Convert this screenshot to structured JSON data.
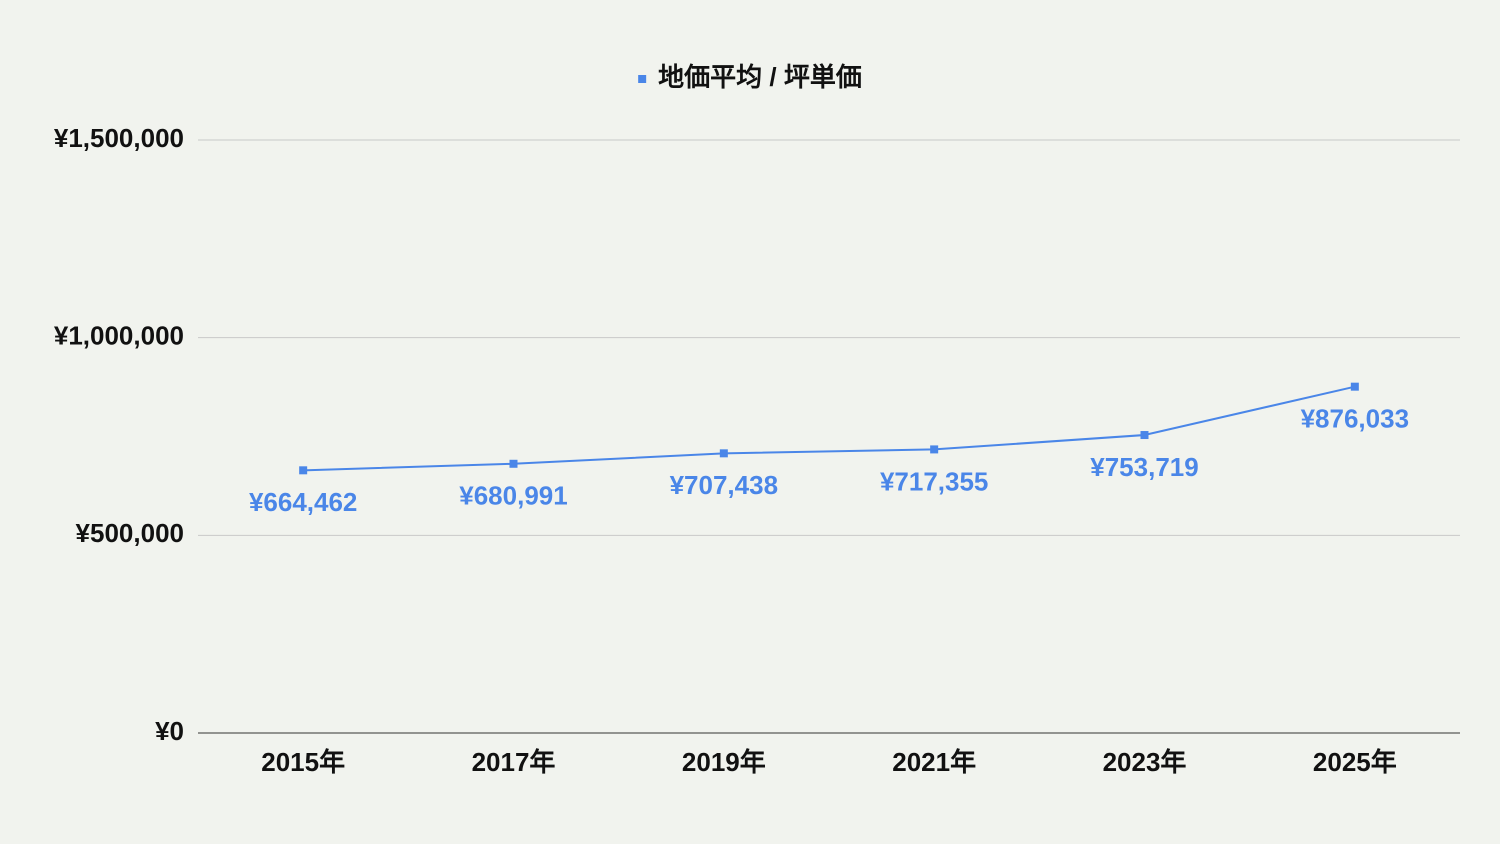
{
  "chart_data": {
    "type": "line",
    "categories": [
      "2015年",
      "2017年",
      "2019年",
      "2021年",
      "2023年",
      "2025年"
    ],
    "series": [
      {
        "name": "地価平均 / 坪単価",
        "color": "#4a86e8",
        "values": [
          664462,
          680991,
          707438,
          717355,
          753719,
          876033
        ],
        "value_labels": [
          "¥664,462",
          "¥680,991",
          "¥707,438",
          "¥717,355",
          "¥753,719",
          "¥876,033"
        ]
      }
    ],
    "ylim": [
      0,
      1500000
    ],
    "yticks": [
      {
        "value": 0,
        "label": "¥0"
      },
      {
        "value": 500000,
        "label": "¥500,000"
      },
      {
        "value": 1000000,
        "label": "¥1,000,000"
      },
      {
        "value": 1500000,
        "label": "¥1,500,000"
      }
    ],
    "grid": true,
    "legend": "top"
  }
}
